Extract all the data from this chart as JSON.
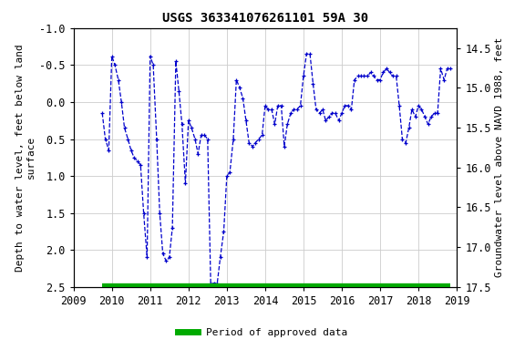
{
  "title": "USGS 363341076261101 59A 30",
  "ylabel_left": "Depth to water level, feet below land\nsurface",
  "ylabel_right": "Groundwater level above NAVD 1988, feet",
  "ylim_left": [
    -1.0,
    2.5
  ],
  "ylim_right": [
    17.5,
    14.25
  ],
  "yticks_left": [
    -1.0,
    -0.5,
    0.0,
    0.5,
    1.0,
    1.5,
    2.0,
    2.5
  ],
  "yticks_right": [
    17.5,
    17.0,
    16.5,
    16.0,
    15.5,
    15.0,
    14.5
  ],
  "xlim": [
    2009.0,
    2019.0
  ],
  "xticks": [
    2009,
    2010,
    2011,
    2012,
    2013,
    2014,
    2015,
    2016,
    2017,
    2018,
    2019
  ],
  "line_color": "#0000cc",
  "approved_color": "#00aa00",
  "background_color": "#ffffff",
  "grid_color": "#cccccc",
  "data_x": [
    2009.75,
    2009.83,
    2009.92,
    2010.0,
    2010.08,
    2010.17,
    2010.25,
    2010.33,
    2010.42,
    2010.5,
    2010.58,
    2010.67,
    2010.75,
    2010.83,
    2010.92,
    2011.0,
    2011.08,
    2011.17,
    2011.25,
    2011.33,
    2011.42,
    2011.5,
    2011.58,
    2011.67,
    2011.75,
    2011.83,
    2011.92,
    2012.0,
    2012.08,
    2012.17,
    2012.25,
    2012.33,
    2012.42,
    2012.5,
    2012.58,
    2012.67,
    2012.75,
    2012.83,
    2012.92,
    2013.0,
    2013.08,
    2013.17,
    2013.25,
    2013.33,
    2013.42,
    2013.5,
    2013.58,
    2013.67,
    2013.75,
    2013.83,
    2013.92,
    2014.0,
    2014.08,
    2014.17,
    2014.25,
    2014.33,
    2014.42,
    2014.5,
    2014.58,
    2014.67,
    2014.75,
    2014.83,
    2014.92,
    2015.0,
    2015.08,
    2015.17,
    2015.25,
    2015.33,
    2015.42,
    2015.5,
    2015.58,
    2015.67,
    2015.75,
    2015.83,
    2015.92,
    2016.0,
    2016.08,
    2016.17,
    2016.25,
    2016.33,
    2016.42,
    2016.5,
    2016.58,
    2016.67,
    2016.75,
    2016.83,
    2016.92,
    2017.0,
    2017.08,
    2017.17,
    2017.25,
    2017.33,
    2017.42,
    2017.5,
    2017.58,
    2017.67,
    2017.75,
    2017.83,
    2017.92,
    2018.0,
    2018.08,
    2018.17,
    2018.25,
    2018.33,
    2018.42,
    2018.5,
    2018.58,
    2018.67,
    2018.75,
    2018.83
  ],
  "data_y": [
    0.15,
    0.5,
    0.65,
    -0.62,
    -0.5,
    -0.3,
    0.0,
    0.35,
    0.5,
    0.65,
    0.75,
    0.8,
    0.85,
    1.5,
    2.1,
    -0.62,
    -0.5,
    0.5,
    1.5,
    2.05,
    2.15,
    2.1,
    1.7,
    -0.55,
    -0.15,
    0.3,
    1.1,
    0.25,
    0.35,
    0.5,
    0.7,
    0.45,
    0.45,
    0.5,
    2.45,
    2.45,
    2.45,
    2.1,
    1.75,
    1.0,
    0.95,
    0.5,
    -0.3,
    -0.2,
    -0.05,
    0.25,
    0.55,
    0.6,
    0.55,
    0.5,
    0.45,
    0.05,
    0.1,
    0.1,
    0.3,
    0.05,
    0.05,
    0.6,
    0.3,
    0.15,
    0.1,
    0.1,
    0.05,
    -0.35,
    -0.65,
    -0.65,
    -0.25,
    0.1,
    0.15,
    0.1,
    0.25,
    0.2,
    0.15,
    0.15,
    0.25,
    0.15,
    0.05,
    0.05,
    0.1,
    -0.3,
    -0.35,
    -0.35,
    -0.35,
    -0.35,
    -0.4,
    -0.35,
    -0.3,
    -0.3,
    -0.4,
    -0.45,
    -0.4,
    -0.35,
    -0.35,
    0.05,
    0.5,
    0.55,
    0.35,
    0.1,
    0.2,
    0.05,
    0.1,
    0.2,
    0.3,
    0.2,
    0.15,
    0.15,
    -0.45,
    -0.3,
    -0.45,
    -0.45
  ],
  "approved_bar_x_start": 2009.75,
  "approved_bar_x_end": 2018.83,
  "legend_label": "Period of approved data",
  "title_fontsize": 10,
  "label_fontsize": 8,
  "tick_fontsize": 8.5
}
